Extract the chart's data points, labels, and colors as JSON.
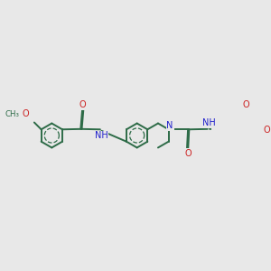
{
  "bg": "#e8e8e8",
  "bc": "#2d6b47",
  "Nc": "#2020cc",
  "Oc": "#cc2020",
  "lw": 1.4,
  "dbo": 0.008,
  "fs": 7.0,
  "fs_small": 6.2,
  "dpi": 100,
  "figsize": [
    3.0,
    3.0
  ],
  "xlim": [
    0.0,
    3.0
  ],
  "ylim": [
    0.5,
    2.8
  ]
}
